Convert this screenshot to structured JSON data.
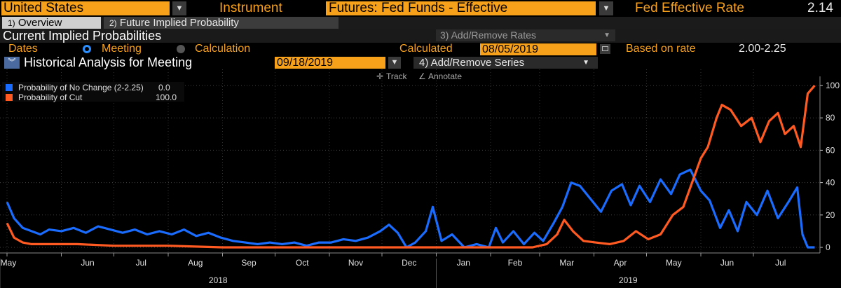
{
  "header": {
    "country": "United States",
    "instrument_label": "Instrument",
    "instrument": "Futures: Fed Funds - Effective",
    "rate_label": "Fed Effective Rate",
    "rate_value": "2.14"
  },
  "tabs": [
    {
      "num": "1)",
      "label": "Overview",
      "active": true
    },
    {
      "num": "2)",
      "label": "Future Implied Probability",
      "active": false
    }
  ],
  "section": {
    "title": "Current Implied Probabilities",
    "add_remove_rates": "3) Add/Remove Rates"
  },
  "dates": {
    "label": "Dates",
    "opt_meeting": "Meeting",
    "opt_calculation": "Calculation",
    "calculated_label": "Calculated",
    "calculated_value": "08/05/2019",
    "based_label": "Based on rate",
    "based_value": "2.00-2.25"
  },
  "historical": {
    "title": "Historical Analysis for Meeting",
    "meeting_date": "09/18/2019",
    "add_remove_series": "4) Add/Remove Series"
  },
  "toolbar": {
    "track": "Track",
    "annotate": "Annotate"
  },
  "colors": {
    "no_change": "#1a6cff",
    "cut": "#ff5a22",
    "field": "#f7a11b"
  },
  "chart_data": {
    "type": "line",
    "y_range": [
      0,
      100
    ],
    "y_ticks": [
      0,
      20,
      40,
      60,
      80,
      100
    ],
    "x_months": [
      "May",
      "Jun",
      "Jul",
      "Aug",
      "Sep",
      "Oct",
      "Nov",
      "Dec",
      "Jan",
      "Feb",
      "Mar",
      "Apr",
      "May",
      "Jun",
      "Jul"
    ],
    "x_years": [
      "2018",
      "2019"
    ],
    "legend_position": "top-left",
    "series": [
      {
        "name": "Probability of No Change (2-2.25)",
        "last": "0.0",
        "color": "#1a6cff",
        "points": [
          [
            "2018-05-01",
            28
          ],
          [
            "2018-05-05",
            18
          ],
          [
            "2018-05-10",
            12
          ],
          [
            "2018-05-15",
            10
          ],
          [
            "2018-05-20",
            8
          ],
          [
            "2018-05-25",
            11
          ],
          [
            "2018-06-01",
            10
          ],
          [
            "2018-06-08",
            12
          ],
          [
            "2018-06-15",
            9
          ],
          [
            "2018-06-22",
            13
          ],
          [
            "2018-06-29",
            11
          ],
          [
            "2018-07-06",
            9
          ],
          [
            "2018-07-13",
            11
          ],
          [
            "2018-07-20",
            8
          ],
          [
            "2018-07-27",
            10
          ],
          [
            "2018-08-03",
            8
          ],
          [
            "2018-08-10",
            11
          ],
          [
            "2018-08-17",
            7
          ],
          [
            "2018-08-24",
            9
          ],
          [
            "2018-08-31",
            6
          ],
          [
            "2018-09-07",
            4
          ],
          [
            "2018-09-14",
            3
          ],
          [
            "2018-09-21",
            2
          ],
          [
            "2018-09-28",
            3
          ],
          [
            "2018-10-05",
            2
          ],
          [
            "2018-10-12",
            3
          ],
          [
            "2018-10-19",
            1
          ],
          [
            "2018-10-26",
            3
          ],
          [
            "2018-11-02",
            3
          ],
          [
            "2018-11-09",
            5
          ],
          [
            "2018-11-16",
            4
          ],
          [
            "2018-11-23",
            6
          ],
          [
            "2018-11-30",
            10
          ],
          [
            "2018-12-05",
            14
          ],
          [
            "2018-12-10",
            9
          ],
          [
            "2018-12-15",
            0
          ],
          [
            "2018-12-20",
            3
          ],
          [
            "2018-12-26",
            10
          ],
          [
            "2018-12-30",
            25
          ],
          [
            "2019-01-04",
            4
          ],
          [
            "2019-01-10",
            8
          ],
          [
            "2019-01-17",
            0
          ],
          [
            "2019-01-24",
            2
          ],
          [
            "2019-01-31",
            0
          ],
          [
            "2019-02-04",
            12
          ],
          [
            "2019-02-08",
            3
          ],
          [
            "2019-02-14",
            10
          ],
          [
            "2019-02-20",
            2
          ],
          [
            "2019-02-26",
            9
          ],
          [
            "2019-03-03",
            4
          ],
          [
            "2019-03-09",
            15
          ],
          [
            "2019-03-14",
            25
          ],
          [
            "2019-03-19",
            40
          ],
          [
            "2019-03-24",
            38
          ],
          [
            "2019-03-30",
            30
          ],
          [
            "2019-04-05",
            22
          ],
          [
            "2019-04-11",
            35
          ],
          [
            "2019-04-17",
            39
          ],
          [
            "2019-04-22",
            26
          ],
          [
            "2019-04-27",
            38
          ],
          [
            "2019-05-03",
            28
          ],
          [
            "2019-05-09",
            42
          ],
          [
            "2019-05-15",
            33
          ],
          [
            "2019-05-20",
            45
          ],
          [
            "2019-05-26",
            48
          ],
          [
            "2019-06-01",
            35
          ],
          [
            "2019-06-06",
            29
          ],
          [
            "2019-06-12",
            12
          ],
          [
            "2019-06-17",
            23
          ],
          [
            "2019-06-22",
            10
          ],
          [
            "2019-06-27",
            28
          ],
          [
            "2019-07-03",
            20
          ],
          [
            "2019-07-09",
            35
          ],
          [
            "2019-07-15",
            18
          ],
          [
            "2019-07-21",
            28
          ],
          [
            "2019-07-26",
            37
          ],
          [
            "2019-07-29",
            8
          ],
          [
            "2019-08-01",
            0
          ],
          [
            "2019-08-05",
            0
          ]
        ]
      },
      {
        "name": "Probability of Cut",
        "last": "100.0",
        "color": "#ff5a22",
        "points": [
          [
            "2018-05-01",
            15
          ],
          [
            "2018-05-05",
            6
          ],
          [
            "2018-05-10",
            3
          ],
          [
            "2018-05-15",
            2
          ],
          [
            "2018-05-25",
            2
          ],
          [
            "2018-06-10",
            2
          ],
          [
            "2018-07-01",
            1
          ],
          [
            "2018-08-01",
            1
          ],
          [
            "2018-09-01",
            0
          ],
          [
            "2018-10-01",
            0
          ],
          [
            "2018-11-01",
            0
          ],
          [
            "2018-12-01",
            0
          ],
          [
            "2019-01-01",
            0
          ],
          [
            "2019-02-01",
            0
          ],
          [
            "2019-02-25",
            0
          ],
          [
            "2019-03-05",
            2
          ],
          [
            "2019-03-11",
            8
          ],
          [
            "2019-03-15",
            17
          ],
          [
            "2019-03-20",
            10
          ],
          [
            "2019-03-26",
            4
          ],
          [
            "2019-04-02",
            3
          ],
          [
            "2019-04-10",
            2
          ],
          [
            "2019-04-18",
            4
          ],
          [
            "2019-04-25",
            10
          ],
          [
            "2019-05-02",
            5
          ],
          [
            "2019-05-09",
            8
          ],
          [
            "2019-05-16",
            20
          ],
          [
            "2019-05-22",
            25
          ],
          [
            "2019-05-27",
            40
          ],
          [
            "2019-06-01",
            55
          ],
          [
            "2019-06-05",
            62
          ],
          [
            "2019-06-10",
            80
          ],
          [
            "2019-06-13",
            88
          ],
          [
            "2019-06-18",
            85
          ],
          [
            "2019-06-24",
            75
          ],
          [
            "2019-06-30",
            80
          ],
          [
            "2019-07-05",
            65
          ],
          [
            "2019-07-10",
            78
          ],
          [
            "2019-07-15",
            83
          ],
          [
            "2019-07-19",
            70
          ],
          [
            "2019-07-24",
            75
          ],
          [
            "2019-07-28",
            62
          ],
          [
            "2019-08-01",
            95
          ],
          [
            "2019-08-05",
            100
          ]
        ]
      }
    ]
  }
}
